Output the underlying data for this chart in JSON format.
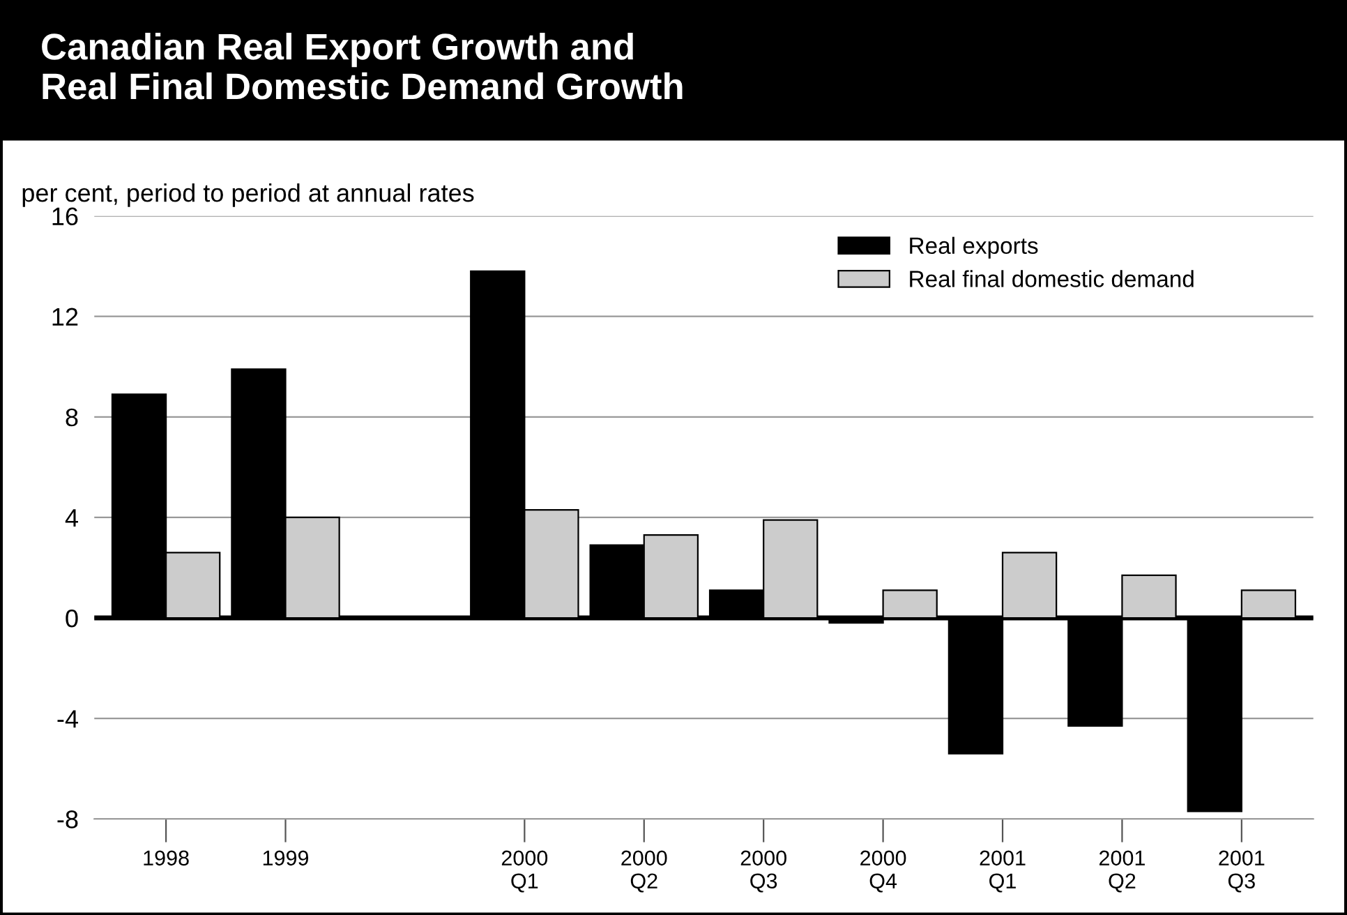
{
  "chart_data": {
    "type": "bar",
    "title": "Canadian Real Export Growth and\nReal Final Domestic Demand Growth",
    "ylabel": "per cent, period to period at annual rates",
    "categories": [
      "1998",
      "1999",
      null,
      "2000\nQ1",
      "2000\nQ2",
      "2000\nQ3",
      "2000\nQ4",
      "2001\nQ1",
      "2001\nQ2",
      "2001\nQ3"
    ],
    "series": [
      {
        "name": "Real exports",
        "color": "#000000",
        "values": [
          8.9,
          9.9,
          null,
          13.8,
          2.9,
          1.1,
          -0.2,
          -5.4,
          -4.3,
          -7.7
        ]
      },
      {
        "name": "Real final domestic demand",
        "color": "#cccccc",
        "values": [
          2.6,
          4.0,
          null,
          4.3,
          3.3,
          3.9,
          1.1,
          2.6,
          1.7,
          1.1
        ]
      }
    ],
    "ylim": [
      -8,
      16
    ],
    "yticks": [
      -8,
      -4,
      0,
      4,
      8,
      12,
      16
    ],
    "grid": "y",
    "legend": "top right"
  }
}
